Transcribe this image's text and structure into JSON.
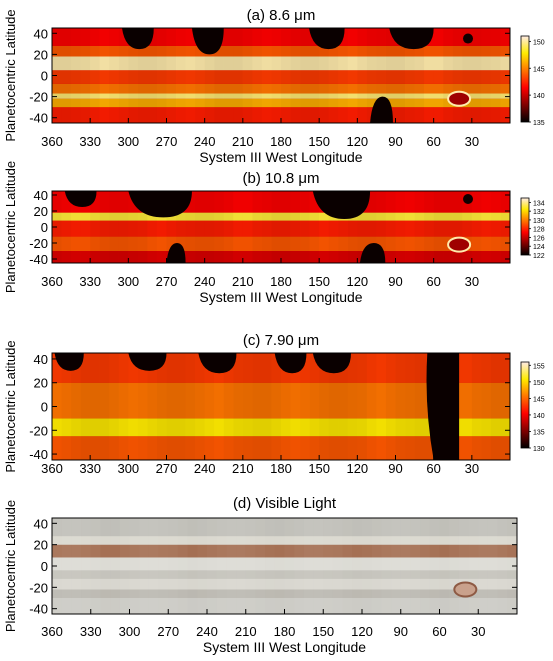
{
  "chart_data": [
    {
      "type": "heatmap",
      "title": "(a) 8.6 μm",
      "xlabel": "System III West Longitude",
      "ylabel": "Planetocentric Latitude",
      "xlim": [
        360,
        0
      ],
      "ylim": [
        -45,
        45
      ],
      "x_ticks": [
        360,
        330,
        300,
        270,
        240,
        210,
        180,
        150,
        120,
        90,
        60,
        30
      ],
      "y_ticks": [
        40,
        20,
        0,
        -20,
        -40
      ],
      "colorbar": {
        "ticks": [
          150,
          145,
          140,
          135
        ],
        "range": [
          135,
          151
        ],
        "colormap": "hot"
      },
      "bands": [
        {
          "lat_start": -45,
          "lat_end": -30,
          "level": 0.45
        },
        {
          "lat_start": -30,
          "lat_end": -22,
          "level": 0.7
        },
        {
          "lat_start": -22,
          "lat_end": -17,
          "level": 0.9
        },
        {
          "lat_start": -17,
          "lat_end": -8,
          "level": 0.6
        },
        {
          "lat_start": -8,
          "lat_end": 5,
          "level": 0.5
        },
        {
          "lat_start": 5,
          "lat_end": 18,
          "level": 0.95
        },
        {
          "lat_start": 18,
          "lat_end": 28,
          "level": 0.55
        },
        {
          "lat_start": 28,
          "lat_end": 45,
          "level": 0.4
        }
      ],
      "gaps": [
        {
          "lon_start": 305,
          "lon_end": 280,
          "lat_start": 25,
          "lat_end": 45
        },
        {
          "lon_start": 250,
          "lon_end": 225,
          "lat_start": 20,
          "lat_end": 45
        },
        {
          "lon_start": 158,
          "lon_end": 130,
          "lat_start": 25,
          "lat_end": 45
        },
        {
          "lon_start": 95,
          "lon_end": 60,
          "lat_start": 25,
          "lat_end": 45
        },
        {
          "lon_start": 110,
          "lon_end": 92,
          "lat_start": -45,
          "lat_end": -20
        }
      ],
      "features": [
        {
          "name": "Great Red Spot",
          "lon": 40,
          "lat": -22
        },
        {
          "name": "dark spot",
          "lon": 33,
          "lat": 35
        }
      ]
    },
    {
      "type": "heatmap",
      "title": "(b) 10.8 μm",
      "xlabel": "System III West Longitude",
      "ylabel": "Planetocentric Latitude",
      "xlim": [
        360,
        0
      ],
      "ylim": [
        -45,
        45
      ],
      "x_ticks": [
        360,
        330,
        300,
        270,
        240,
        210,
        180,
        150,
        120,
        90,
        60,
        30
      ],
      "y_ticks": [
        40,
        20,
        0,
        -20,
        -40
      ],
      "colorbar": {
        "ticks": [
          134,
          132,
          130,
          128,
          126,
          124,
          122
        ],
        "range": [
          122,
          135
        ],
        "colormap": "hot"
      },
      "bands": [
        {
          "lat_start": -45,
          "lat_end": -30,
          "level": 0.35
        },
        {
          "lat_start": -30,
          "lat_end": -12,
          "level": 0.55
        },
        {
          "lat_start": -12,
          "lat_end": 8,
          "level": 0.45
        },
        {
          "lat_start": 8,
          "lat_end": 18,
          "level": 0.85
        },
        {
          "lat_start": 18,
          "lat_end": 45,
          "level": 0.4
        }
      ],
      "gaps": [
        {
          "lon_start": 350,
          "lon_end": 325,
          "lat_start": 25,
          "lat_end": 45
        },
        {
          "lon_start": 300,
          "lon_end": 250,
          "lat_start": 12,
          "lat_end": 45
        },
        {
          "lon_start": 270,
          "lon_end": 255,
          "lat_start": -45,
          "lat_end": -20
        },
        {
          "lon_start": 155,
          "lon_end": 110,
          "lat_start": 10,
          "lat_end": 45
        },
        {
          "lon_start": 118,
          "lon_end": 98,
          "lat_start": -45,
          "lat_end": -20
        }
      ],
      "features": [
        {
          "name": "Great Red Spot",
          "lon": 40,
          "lat": -22
        },
        {
          "name": "dark spot",
          "lon": 33,
          "lat": 35
        }
      ]
    },
    {
      "type": "heatmap",
      "title": "(c) 7.90 μm",
      "xlabel": "",
      "ylabel": "Planetocentric Latitude",
      "xlim": [
        360,
        0
      ],
      "ylim": [
        -45,
        45
      ],
      "x_ticks": [
        360,
        330,
        300,
        270,
        240,
        210,
        180,
        150,
        120,
        90,
        60,
        30
      ],
      "y_ticks": [
        40,
        20,
        0,
        -20,
        -40
      ],
      "colorbar": {
        "ticks": [
          155,
          150,
          145,
          140,
          135,
          130
        ],
        "range": [
          130,
          156
        ],
        "colormap": "hot"
      },
      "bands": [
        {
          "lat_start": -45,
          "lat_end": -25,
          "level": 0.55
        },
        {
          "lat_start": -25,
          "lat_end": -10,
          "level": 0.8
        },
        {
          "lat_start": -10,
          "lat_end": 20,
          "level": 0.6
        },
        {
          "lat_start": 20,
          "lat_end": 45,
          "level": 0.5
        }
      ],
      "gaps": [
        {
          "lon_start": 358,
          "lon_end": 335,
          "lat_start": 30,
          "lat_end": 45
        },
        {
          "lon_start": 300,
          "lon_end": 270,
          "lat_start": 30,
          "lat_end": 45
        },
        {
          "lon_start": 245,
          "lon_end": 215,
          "lat_start": 28,
          "lat_end": 45
        },
        {
          "lon_start": 185,
          "lon_end": 160,
          "lat_start": 28,
          "lat_end": 45
        },
        {
          "lon_start": 155,
          "lon_end": 125,
          "lat_start": 28,
          "lat_end": 45
        },
        {
          "lon_start": 65,
          "lon_end": 40,
          "lat_start": -45,
          "lat_end": 45
        }
      ],
      "features": []
    },
    {
      "type": "heatmap",
      "title": "(d) Visible Light",
      "xlabel": "System III West Longitude",
      "ylabel": "Planetocentric Latitude",
      "xlim": [
        360,
        0
      ],
      "ylim": [
        -45,
        45
      ],
      "x_ticks": [
        360,
        330,
        300,
        270,
        240,
        210,
        180,
        150,
        120,
        90,
        60,
        30
      ],
      "y_ticks": [
        40,
        20,
        0,
        -20,
        -40
      ],
      "colorbar": null,
      "bands": [
        {
          "lat_start": -45,
          "lat_end": -30,
          "color": "#c9c8c2"
        },
        {
          "lat_start": -30,
          "lat_end": -22,
          "color": "#b8b5ad"
        },
        {
          "lat_start": -22,
          "lat_end": -12,
          "color": "#d6d4cc"
        },
        {
          "lat_start": -12,
          "lat_end": -4,
          "color": "#c2c0b8"
        },
        {
          "lat_start": -4,
          "lat_end": 8,
          "color": "#dad9d2"
        },
        {
          "lat_start": 8,
          "lat_end": 20,
          "color": "#a0684a"
        },
        {
          "lat_start": 20,
          "lat_end": 28,
          "color": "#d8d6cc"
        },
        {
          "lat_start": 28,
          "lat_end": 45,
          "color": "#bdbcb5"
        }
      ],
      "gaps": [],
      "features": [
        {
          "name": "Great Red Spot",
          "lon": 40,
          "lat": -22
        }
      ]
    }
  ]
}
